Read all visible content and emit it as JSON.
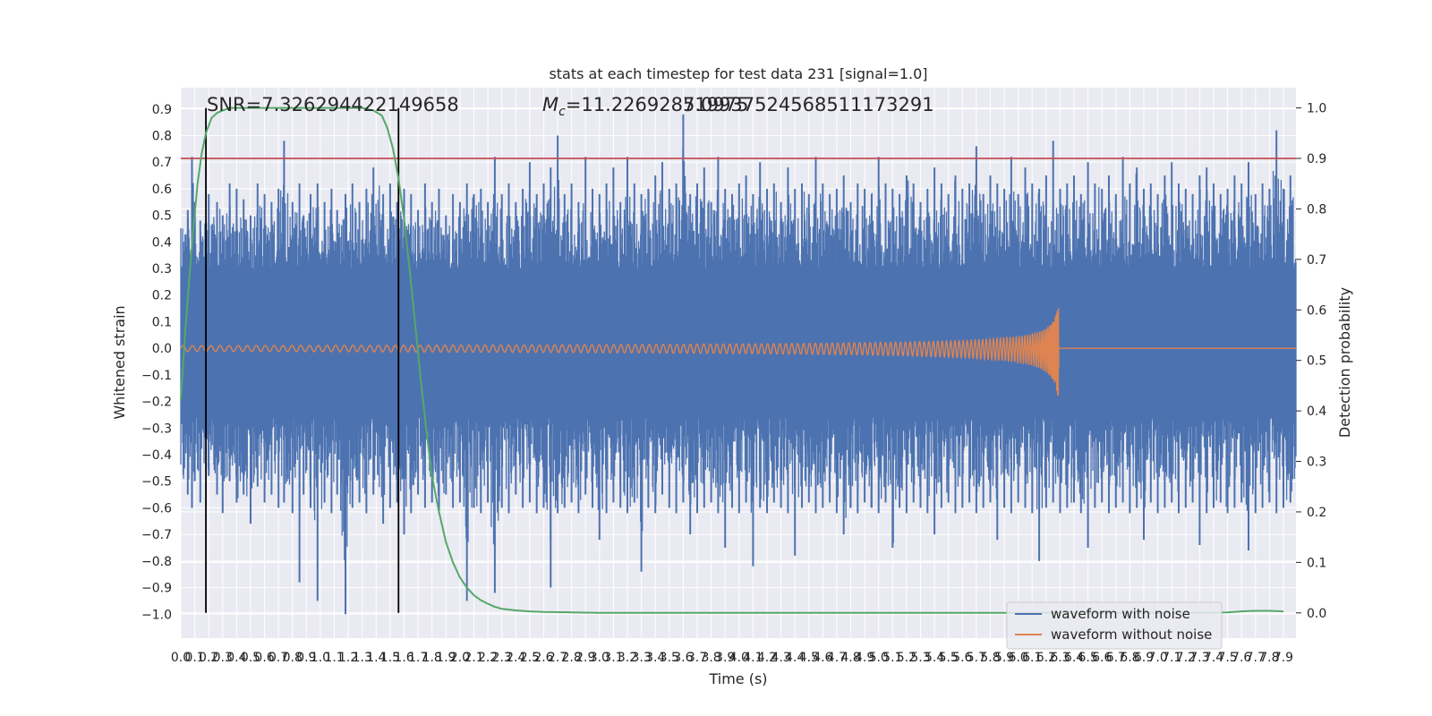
{
  "chart_data": {
    "type": "line",
    "title": "stats at each timestep for test data 231 [signal=1.0]",
    "xlabel": "Time (s)",
    "ylabel": "Whitened strain",
    "ylabel_right": "Detection probability",
    "xlim": [
      0.0,
      7.99
    ],
    "ylim": [
      -1.09,
      0.98
    ],
    "ylim_right": [
      -0.05,
      1.04
    ],
    "grid": true,
    "legend_position": "lower right",
    "x_ticks": [
      "0.0",
      "0.1",
      "0.2",
      "0.3",
      "0.4",
      "0.5",
      "0.6",
      "0.7",
      "0.8",
      "0.9",
      "1.0",
      "1.1",
      "1.2",
      "1.3",
      "1.4",
      "1.5",
      "1.6",
      "1.7",
      "1.8",
      "1.9",
      "2.0",
      "2.1",
      "2.2",
      "2.3",
      "2.4",
      "2.5",
      "2.6",
      "2.7",
      "2.8",
      "2.9",
      "3.0",
      "3.1",
      "3.2",
      "3.3",
      "3.4",
      "3.5",
      "3.6",
      "3.7",
      "3.8",
      "3.9",
      "4.0",
      "4.1",
      "4.2",
      "4.3",
      "4.4",
      "4.5",
      "4.6",
      "4.7",
      "4.8",
      "4.9",
      "5.0",
      "5.1",
      "5.2",
      "5.3",
      "5.4",
      "5.5",
      "5.6",
      "5.7",
      "5.8",
      "5.9",
      "6.0",
      "6.1",
      "6.2",
      "6.3",
      "6.4",
      "6.5",
      "6.6",
      "6.7",
      "6.8",
      "6.9",
      "7.0",
      "7.1",
      "7.2",
      "7.3",
      "7.4",
      "7.5",
      "7.6",
      "7.7",
      "7.8",
      "7.9"
    ],
    "y_ticks": [
      "0.9",
      "0.8",
      "0.7",
      "0.6",
      "0.5",
      "0.4",
      "0.3",
      "0.2",
      "0.1",
      "0.0",
      "−0.1",
      "−0.2",
      "−0.3",
      "−0.4",
      "−0.5",
      "−0.6",
      "−0.7",
      "−0.8",
      "−0.9",
      "−1.0"
    ],
    "y_right_ticks": [
      "1.0",
      "0.9",
      "0.8",
      "0.7",
      "0.6",
      "0.5",
      "0.4",
      "0.3",
      "0.2",
      "0.1",
      "0.0"
    ],
    "annotations": {
      "snr": "SNR=7.326294422149658",
      "mc_symbol": "M",
      "mc_subscript": "c",
      "mc_value": "=11.226928719937524568511173291",
      "overlap_value": "5.0975"
    },
    "series": [
      {
        "name": "waveform with noise",
        "color": "#4c72b0",
        "axis": "left",
        "noise_band": [
          -0.26,
          0.3
        ],
        "envelope_peaks_x": [
          0.05,
          0.08,
          0.1,
          0.14,
          0.2,
          0.26,
          0.3,
          0.35,
          0.4,
          0.45,
          0.5,
          0.55,
          0.6,
          0.65,
          0.7,
          0.74,
          0.8,
          0.85,
          0.88,
          0.93,
          0.98,
          1.03,
          1.08,
          1.12,
          1.18,
          1.23,
          1.28,
          1.33,
          1.38,
          1.45,
          1.5,
          1.55,
          1.6,
          1.65,
          1.7,
          1.75,
          1.8,
          1.85,
          1.9,
          1.95,
          2.0,
          2.05,
          2.1,
          2.15,
          2.2,
          2.25,
          2.3,
          2.35,
          2.4,
          2.45,
          2.5,
          2.55,
          2.6,
          2.65,
          2.7,
          2.75,
          2.8,
          2.85,
          2.9,
          2.95,
          3.0,
          3.05,
          3.1,
          3.15,
          3.2,
          3.25,
          3.3,
          3.35,
          3.4,
          3.45,
          3.5,
          3.55,
          3.6,
          3.65,
          3.7,
          3.75,
          3.8,
          3.85,
          3.9,
          3.95,
          4.0,
          4.05,
          4.1,
          4.15,
          4.2,
          4.25,
          4.3,
          4.35,
          4.4,
          4.45,
          4.5,
          4.55,
          4.6,
          4.65,
          4.7,
          4.75,
          4.8,
          4.85,
          4.9,
          4.95,
          5.0,
          5.05,
          5.1,
          5.15,
          5.2,
          5.25,
          5.3,
          5.35,
          5.4,
          5.45,
          5.5,
          5.55,
          5.6,
          5.65,
          5.7,
          5.75,
          5.8,
          5.85,
          5.9,
          5.95,
          6.0,
          6.05,
          6.1,
          6.15,
          6.2,
          6.25,
          6.3,
          6.35,
          6.4,
          6.45,
          6.5,
          6.55,
          6.6,
          6.65,
          6.7,
          6.75,
          6.8,
          6.85,
          6.9,
          6.95,
          7.0,
          7.05,
          7.1,
          7.15,
          7.2,
          7.25,
          7.3,
          7.35,
          7.4,
          7.45,
          7.5,
          7.55,
          7.6,
          7.65,
          7.7,
          7.75,
          7.8,
          7.85,
          7.9,
          7.95
        ],
        "envelope_max": [
          0.52,
          0.72,
          0.55,
          0.48,
          0.58,
          0.55,
          0.5,
          0.62,
          0.6,
          0.56,
          0.5,
          0.62,
          0.58,
          0.55,
          0.6,
          0.78,
          0.55,
          0.62,
          0.5,
          0.58,
          0.62,
          0.55,
          0.6,
          0.52,
          0.58,
          0.62,
          0.55,
          0.6,
          0.68,
          0.58,
          0.62,
          0.55,
          0.6,
          0.58,
          0.52,
          0.62,
          0.55,
          0.6,
          0.5,
          0.58,
          0.55,
          0.62,
          0.58,
          0.6,
          0.55,
          0.72,
          0.58,
          0.62,
          0.55,
          0.6,
          0.7,
          0.58,
          0.62,
          0.68,
          0.8,
          0.58,
          0.62,
          0.55,
          0.72,
          0.6,
          0.58,
          0.62,
          0.68,
          0.55,
          0.72,
          0.62,
          0.58,
          0.6,
          0.65,
          0.7,
          0.6,
          0.62,
          0.88,
          0.58,
          0.62,
          0.68,
          0.55,
          0.72,
          0.6,
          0.58,
          0.62,
          0.65,
          0.58,
          0.7,
          0.6,
          0.62,
          0.55,
          0.68,
          0.6,
          0.62,
          0.58,
          0.72,
          0.62,
          0.58,
          0.6,
          0.65,
          0.55,
          0.62,
          0.6,
          0.58,
          0.72,
          0.62,
          0.6,
          0.58,
          0.65,
          0.62,
          0.55,
          0.6,
          0.68,
          0.62,
          0.58,
          0.65,
          0.6,
          0.62,
          0.76,
          0.58,
          0.65,
          0.62,
          0.6,
          0.72,
          0.58,
          0.68,
          0.62,
          0.6,
          0.65,
          0.78,
          0.6,
          0.62,
          0.65,
          0.58,
          0.7,
          0.62,
          0.6,
          0.65,
          0.58,
          0.72,
          0.62,
          0.68,
          0.6,
          0.62,
          0.58,
          0.65,
          0.7,
          0.62,
          0.6,
          0.58,
          0.65,
          0.68,
          0.62,
          0.58,
          0.6,
          0.65,
          0.62,
          0.7,
          0.58,
          0.62,
          0.6,
          0.82,
          0.6,
          0.65
        ],
        "envelope_min": [
          -0.55,
          -0.6,
          -0.5,
          -0.58,
          -0.48,
          -0.55,
          -0.62,
          -0.5,
          -0.58,
          -0.55,
          -0.66,
          -0.52,
          -0.58,
          -0.55,
          -0.6,
          -0.58,
          -0.62,
          -0.88,
          -0.55,
          -0.6,
          -0.95,
          -0.58,
          -0.62,
          -0.55,
          -1.0,
          -0.6,
          -0.58,
          -0.62,
          -0.55,
          -0.66,
          -0.6,
          -0.58,
          -0.7,
          -0.62,
          -0.55,
          -0.6,
          -0.58,
          -0.62,
          -0.55,
          -0.6,
          -0.58,
          -0.95,
          -0.6,
          -0.62,
          -0.58,
          -0.92,
          -0.6,
          -0.62,
          -0.55,
          -0.6,
          -0.58,
          -0.62,
          -0.6,
          -0.9,
          -0.62,
          -0.6,
          -0.58,
          -0.62,
          -0.55,
          -0.6,
          -0.72,
          -0.62,
          -0.58,
          -0.6,
          -0.62,
          -0.58,
          -0.84,
          -0.6,
          -0.62,
          -0.55,
          -0.6,
          -0.62,
          -0.58,
          -0.7,
          -0.62,
          -0.6,
          -0.58,
          -0.62,
          -0.75,
          -0.6,
          -0.62,
          -0.58,
          -0.82,
          -0.6,
          -0.62,
          -0.58,
          -0.6,
          -0.62,
          -0.78,
          -0.6,
          -0.58,
          -0.62,
          -0.6,
          -0.58,
          -0.62,
          -0.7,
          -0.6,
          -0.62,
          -0.58,
          -0.6,
          -0.62,
          -0.58,
          -0.75,
          -0.6,
          -0.62,
          -0.58,
          -0.6,
          -0.62,
          -0.7,
          -0.6,
          -0.58,
          -0.62,
          -0.6,
          -0.58,
          -0.62,
          -0.6,
          -0.58,
          -0.72,
          -0.6,
          -0.62,
          -0.58,
          -0.6,
          -0.62,
          -0.8,
          -0.6,
          -0.58,
          -0.62,
          -0.6,
          -0.58,
          -0.62,
          -0.75,
          -0.6,
          -0.58,
          -0.62,
          -0.6,
          -0.58,
          -0.62,
          -0.6,
          -0.72,
          -0.58,
          -0.62,
          -0.6,
          -0.58,
          -0.62,
          -0.6,
          -0.58,
          -0.74,
          -0.62,
          -0.6,
          -0.58,
          -0.62,
          -0.6,
          -0.58,
          -0.76,
          -0.62,
          -0.6,
          -0.58,
          -0.62,
          -0.6,
          -0.58
        ]
      },
      {
        "name": "waveform without noise",
        "color": "#dd8452",
        "axis": "left",
        "merger_time": 6.29,
        "start_time": 0.0,
        "start_amplitude": 0.01,
        "peak_amplitude_max": 0.23,
        "peak_amplitude_min": -0.28
      },
      {
        "name": "detection probability",
        "color": "#55a868",
        "axis": "right",
        "x": [
          0.0,
          0.03,
          0.06,
          0.09,
          0.12,
          0.15,
          0.18,
          0.22,
          0.26,
          0.3,
          0.35,
          0.4,
          0.5,
          0.6,
          0.8,
          1.0,
          1.2,
          1.3,
          1.38,
          1.44,
          1.48,
          1.52,
          1.56,
          1.6,
          1.64,
          1.68,
          1.72,
          1.76,
          1.8,
          1.85,
          1.9,
          1.95,
          2.0,
          2.05,
          2.1,
          2.15,
          2.2,
          2.25,
          2.3,
          2.4,
          2.5,
          2.6,
          2.8,
          3.0,
          4.0,
          5.0,
          6.0,
          7.0,
          7.3,
          7.5,
          7.6,
          7.7,
          7.8,
          7.9
        ],
        "values": [
          0.42,
          0.55,
          0.66,
          0.76,
          0.85,
          0.91,
          0.95,
          0.98,
          0.99,
          0.995,
          1.0,
          1.0,
          1.0,
          1.0,
          1.0,
          1.0,
          1.0,
          1.0,
          0.995,
          0.985,
          0.96,
          0.92,
          0.86,
          0.78,
          0.68,
          0.57,
          0.46,
          0.36,
          0.27,
          0.2,
          0.14,
          0.1,
          0.07,
          0.05,
          0.035,
          0.025,
          0.018,
          0.012,
          0.008,
          0.005,
          0.003,
          0.002,
          0.001,
          0.0,
          0.0,
          0.0,
          0.0,
          0.0,
          0.0,
          0.001,
          0.003,
          0.004,
          0.004,
          0.003
        ]
      }
    ],
    "horizontal_lines": [
      {
        "color": "#c44e52",
        "axis": "right",
        "value": 0.9
      }
    ],
    "vertical_lines": [
      {
        "color": "#000000",
        "x": 0.18
      },
      {
        "color": "#000000",
        "x": 1.56
      }
    ]
  }
}
